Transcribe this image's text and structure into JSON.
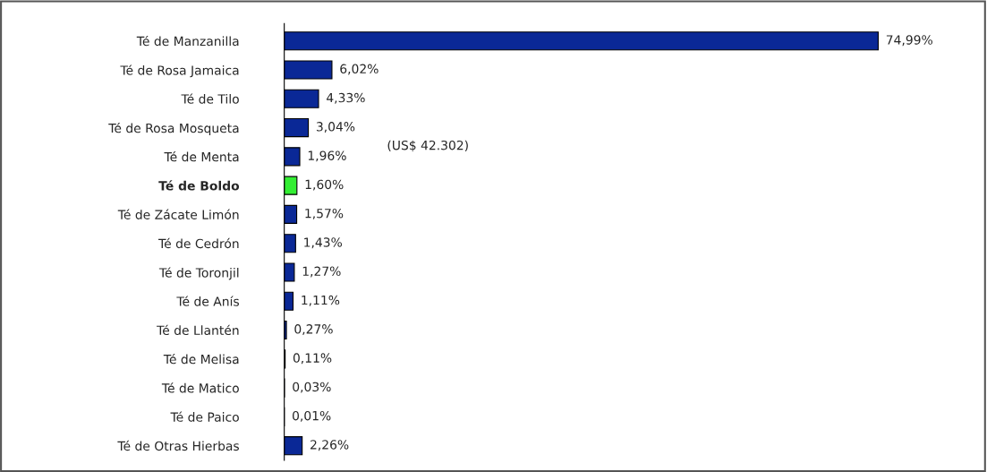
{
  "chart_data": {
    "type": "bar",
    "orientation": "horizontal",
    "categories": [
      "Té de Manzanilla",
      "Té de Rosa Jamaica",
      "Té de Tilo",
      "Té de Rosa Mosqueta",
      "Té de Menta",
      "Té de Boldo",
      "Té de Zácate Limón",
      "Té de Cedrón",
      "Té de Toronjil",
      "Té de Anís",
      "Té de Llantén",
      "Té de Melisa",
      "Té de Matico",
      "Té de Paico",
      "Té de Otras Hierbas"
    ],
    "values": [
      74.99,
      6.02,
      4.33,
      3.04,
      1.96,
      1.6,
      1.57,
      1.43,
      1.27,
      1.11,
      0.27,
      0.11,
      0.03,
      0.01,
      2.26
    ],
    "colors": [
      "#0a2896",
      "#0a2896",
      "#0a2896",
      "#0a2896",
      "#0a2896",
      "#33ee33",
      "#0a2896",
      "#0a2896",
      "#0a2896",
      "#0a2896",
      "#0a2896",
      "#0a2896",
      "#0a2896",
      "#0a2896",
      "#0a2896"
    ],
    "value_labels": [
      "74,99%",
      "6,02%",
      "4,33%",
      "3,04%",
      "1,96%",
      "1,60%",
      "1,57%",
      "1,43%",
      "1,27%",
      "1,11%",
      "0,27%",
      "0,11%",
      "0,03%",
      "0,01%",
      "2,26%"
    ],
    "annotations": [
      "(US$ 42.302)"
    ],
    "grid": false,
    "legend": false
  }
}
